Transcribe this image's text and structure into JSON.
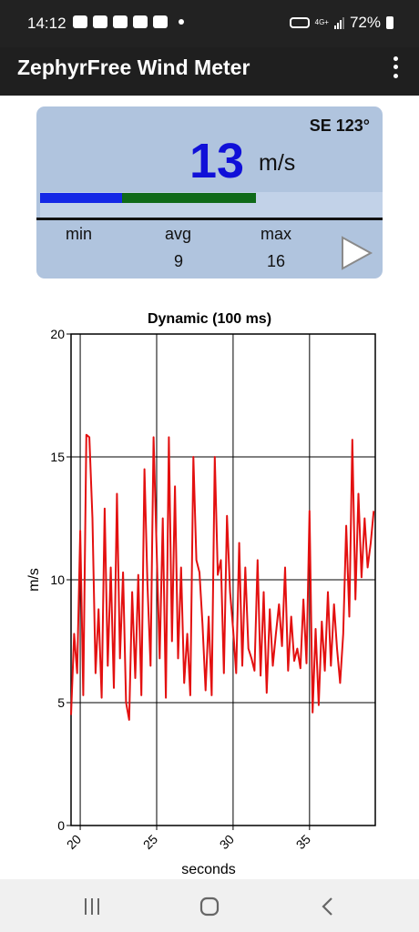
{
  "status_bar": {
    "time": "14:12",
    "battery": "72%",
    "network_type": "4G+",
    "left_icons": [
      "youtube-icon",
      "eye-icon",
      "shield-icon",
      "exchange-icon",
      "gallery-icon",
      "notification-dot-icon"
    ],
    "right_icons": [
      "vpn-key-icon",
      "network-4g-icon",
      "signal-icon",
      "battery-icon"
    ]
  },
  "app_bar": {
    "title": "ZephyrFree Wind Meter",
    "menu_icon": "overflow-menu-icon"
  },
  "wind_panel": {
    "direction": "SE 123°",
    "speed": "13",
    "unit": "m/s",
    "stats": {
      "min_label": "min",
      "min_value": "",
      "avg_label": "avg",
      "avg_value": "9",
      "max_label": "max",
      "max_value": "16"
    },
    "gust_bar": {
      "lower_fraction": 0.24,
      "upper_fraction": 0.63,
      "colors": {
        "lower": "#1528e6",
        "upper": "#0f6a19"
      }
    },
    "play_icon": "play-icon",
    "background_color": "#b0c4de",
    "speed_color": "#1010d8"
  },
  "chart_data": {
    "type": "line",
    "title": "Dynamic (100 ms)",
    "xlabel": "seconds",
    "ylabel": "m/s",
    "xlim": [
      19.4,
      39.3
    ],
    "ylim": [
      0,
      20
    ],
    "xticks": [
      20,
      25,
      30,
      35
    ],
    "yticks": [
      0,
      5,
      10,
      15,
      20
    ],
    "grid": true,
    "series": [
      {
        "color": "#e31010",
        "x": [
          19.4,
          19.6,
          19.8,
          20.0,
          20.2,
          20.4,
          20.6,
          20.8,
          21.0,
          21.2,
          21.4,
          21.6,
          21.8,
          22.0,
          22.2,
          22.4,
          22.6,
          22.8,
          23.0,
          23.2,
          23.4,
          23.6,
          23.8,
          24.0,
          24.2,
          24.4,
          24.6,
          24.8,
          25.0,
          25.2,
          25.4,
          25.6,
          25.8,
          26.0,
          26.2,
          26.4,
          26.6,
          26.8,
          27.0,
          27.2,
          27.4,
          27.6,
          27.8,
          28.0,
          28.2,
          28.4,
          28.6,
          28.8,
          29.0,
          29.2,
          29.4,
          29.6,
          29.8,
          30.0,
          30.2,
          30.4,
          30.6,
          30.8,
          31.0,
          31.2,
          31.4,
          31.6,
          31.8,
          32.0,
          32.2,
          32.4,
          32.6,
          32.8,
          33.0,
          33.2,
          33.4,
          33.6,
          33.8,
          34.0,
          34.2,
          34.4,
          34.6,
          34.8,
          35.0,
          35.2,
          35.4,
          35.6,
          35.8,
          36.0,
          36.2,
          36.4,
          36.6,
          36.8,
          37.0,
          37.2,
          37.4,
          37.6,
          37.8,
          38.0,
          38.2,
          38.4,
          38.6,
          38.8,
          39.0,
          39.2
        ],
        "values": [
          4.5,
          7.8,
          6.2,
          12.0,
          5.3,
          15.9,
          15.8,
          12.5,
          6.2,
          8.8,
          5.2,
          12.9,
          6.5,
          10.5,
          5.6,
          13.5,
          6.8,
          10.3,
          5.0,
          4.3,
          9.5,
          6.0,
          10.2,
          5.3,
          14.5,
          9.8,
          6.5,
          15.8,
          11.2,
          6.8,
          12.5,
          5.2,
          15.8,
          7.5,
          13.8,
          6.8,
          10.5,
          5.8,
          7.8,
          5.3,
          15.0,
          10.8,
          10.3,
          8.2,
          5.5,
          8.5,
          5.3,
          15.0,
          10.2,
          10.8,
          6.2,
          12.6,
          9.5,
          8.0,
          6.2,
          11.5,
          6.5,
          10.5,
          7.2,
          6.8,
          6.3,
          10.8,
          6.1,
          9.5,
          5.4,
          8.8,
          6.5,
          7.8,
          9.0,
          7.3,
          10.5,
          6.3,
          8.5,
          6.7,
          7.2,
          6.4,
          9.2,
          6.6,
          12.8,
          4.6,
          8.0,
          4.9,
          8.3,
          6.3,
          9.5,
          6.5,
          9.0,
          7.2,
          5.8,
          7.8,
          12.2,
          8.5,
          15.7,
          9.2,
          13.5,
          10.1,
          12.5,
          10.5,
          11.5,
          12.8
        ]
      }
    ]
  },
  "nav_bar": {
    "items": [
      "recent-apps-icon",
      "home-icon",
      "back-icon"
    ]
  }
}
